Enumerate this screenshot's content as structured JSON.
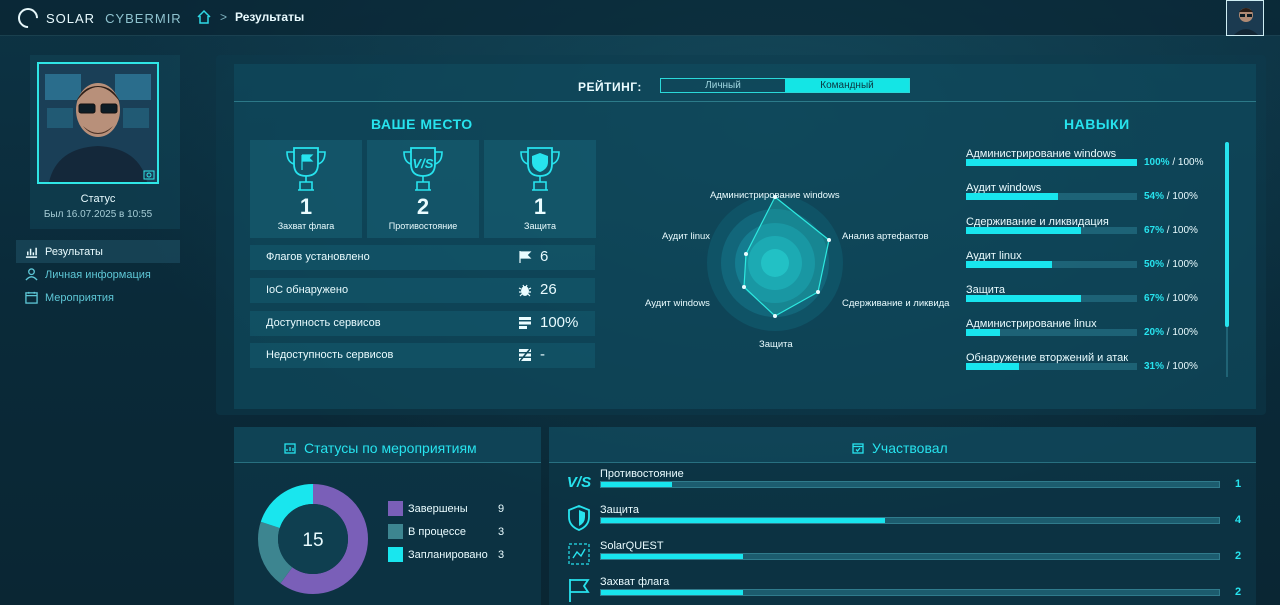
{
  "brand": {
    "name_a": "SOLAR",
    "name_b": "CYBERMIR"
  },
  "breadcrumb": {
    "separator": ">",
    "current": "Результаты"
  },
  "profile": {
    "status_label": "Статус",
    "last_seen": "Был 16.07.2025 в 10:55"
  },
  "nav": [
    {
      "label": "Результаты",
      "icon": "chart-icon",
      "active": true
    },
    {
      "label": "Личная информация",
      "icon": "user-icon",
      "active": false
    },
    {
      "label": "Мероприятия",
      "icon": "calendar-icon",
      "active": false
    }
  ],
  "rating": {
    "label": "РЕЙТИНГ:",
    "options": [
      "Личный",
      "Командный"
    ],
    "selected": "Командный"
  },
  "place": {
    "title": "ВАШЕ МЕСТО",
    "trophies": [
      {
        "value": "1",
        "label": "Захват флага",
        "icon": "flag-trophy-icon"
      },
      {
        "value": "2",
        "label": "Противостояние",
        "icon": "vs-trophy-icon"
      },
      {
        "value": "1",
        "label": "Защита",
        "icon": "shield-trophy-icon"
      }
    ],
    "stats": [
      {
        "label": "Флагов установлено",
        "value": "6",
        "icon": "flag-icon"
      },
      {
        "label": "IoC обнаружено",
        "value": "26",
        "icon": "bug-icon"
      },
      {
        "label": "Доступность сервисов",
        "value": "100%",
        "icon": "server-icon"
      },
      {
        "label": "Недоступность сервисов",
        "value": "-",
        "icon": "server-off-icon"
      }
    ]
  },
  "radar": {
    "axes": [
      "Администрирование windows",
      "Анализ артефактов",
      "Сдерживание и ликвида",
      "Защита",
      "Аудит windows",
      "Аудит linux"
    ]
  },
  "skills": {
    "title": "НАВЫКИ",
    "items": [
      {
        "name": "Администрирование windows",
        "pct": "100%",
        "max": "/ 100%",
        "value": 1.0
      },
      {
        "name": "Аудит windows",
        "pct": "54%",
        "max": "/ 100%",
        "value": 0.54
      },
      {
        "name": "Сдерживание и ликвидация",
        "pct": "67%",
        "max": "/ 100%",
        "value": 0.67
      },
      {
        "name": "Аудит linux",
        "pct": "50%",
        "max": "/ 100%",
        "value": 0.5
      },
      {
        "name": "Защита",
        "pct": "67%",
        "max": "/ 100%",
        "value": 0.67
      },
      {
        "name": "Администрирование linux",
        "pct": "20%",
        "max": "/ 100%",
        "value": 0.2
      },
      {
        "name": "Обнаружение вторжений и атак",
        "pct": "31%",
        "max": "/ 100%",
        "value": 0.31
      }
    ]
  },
  "statuses": {
    "title": "Статусы по мероприятиям",
    "total": "15",
    "items": [
      {
        "name": "Завершены",
        "count": "9",
        "color": "#7a5fb8",
        "value": 9
      },
      {
        "name": "В процессе",
        "count": "3",
        "color": "#3d8590",
        "value": 3
      },
      {
        "name": "Запланировано",
        "count": "3",
        "color": "#19e6ee",
        "value": 3
      }
    ]
  },
  "participated": {
    "title": "Участвовал",
    "items": [
      {
        "name": "Противостояние",
        "count": "1",
        "value": 0.115,
        "icon": "vs-icon"
      },
      {
        "name": "Защита",
        "count": "4",
        "value": 0.46,
        "icon": "shield-icon"
      },
      {
        "name": "SolarQUEST",
        "count": "2",
        "value": 0.23,
        "icon": "quest-icon"
      },
      {
        "name": "Захват флага",
        "count": "2",
        "value": 0.23,
        "icon": "flag-icon"
      }
    ]
  }
}
